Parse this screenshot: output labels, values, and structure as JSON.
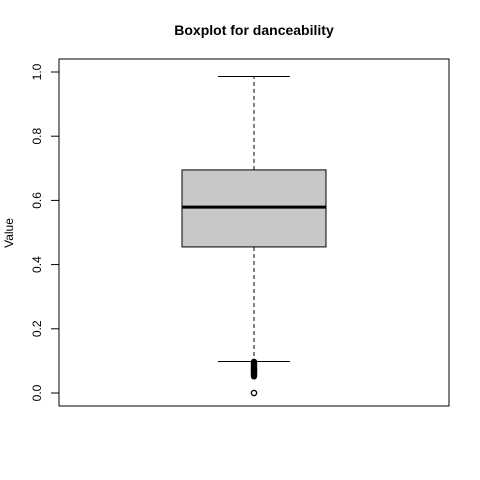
{
  "chart_data": {
    "type": "boxplot",
    "title": "Boxplot for danceability",
    "ylabel": "Value",
    "xlabel": "",
    "ylim": [
      0,
      1
    ],
    "y_ticks": [
      "0.0",
      "0.2",
      "0.4",
      "0.6",
      "0.8",
      "1.0"
    ],
    "grid": false,
    "box_color": "#c8c8c8",
    "series": [
      {
        "whisker_low": 0.098,
        "q1": 0.455,
        "median": 0.579,
        "q3": 0.695,
        "whisker_high": 0.986,
        "outliers": [
          0.0,
          0.0,
          0.052,
          0.055,
          0.058,
          0.061,
          0.064,
          0.067,
          0.07,
          0.073,
          0.076,
          0.079,
          0.082,
          0.085,
          0.088,
          0.091,
          0.094,
          0.097
        ]
      }
    ]
  }
}
